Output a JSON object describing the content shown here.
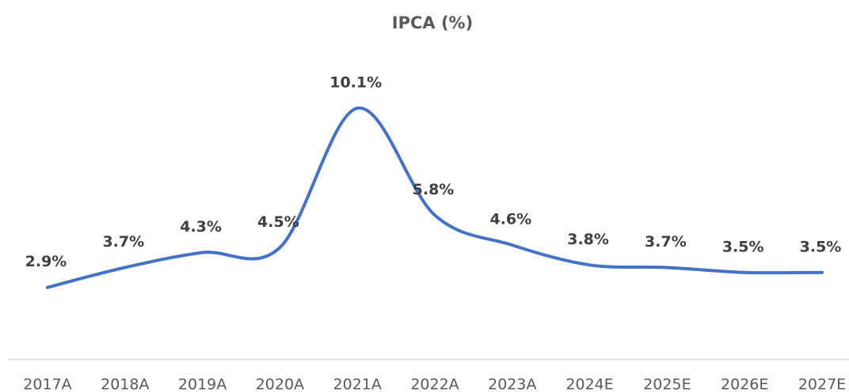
{
  "chart_data": {
    "type": "line",
    "title": "IPCA (%)",
    "categories": [
      "2017A",
      "2018A",
      "2019A",
      "2020A",
      "2021A",
      "2022A",
      "2023A",
      "2024E",
      "2025E",
      "2026E",
      "2027E"
    ],
    "series": [
      {
        "name": "IPCA",
        "color": "#4472c4",
        "values": [
          2.9,
          3.7,
          4.3,
          4.5,
          10.1,
          5.8,
          4.6,
          3.8,
          3.7,
          3.5,
          3.5
        ],
        "value_labels": [
          "2.9%",
          "3.7%",
          "4.3%",
          "4.5%",
          "10.1%",
          "5.8%",
          "4.6%",
          "3.8%",
          "3.7%",
          "3.5%",
          "3.5%"
        ]
      }
    ],
    "ylim": [
      0,
      12
    ]
  }
}
